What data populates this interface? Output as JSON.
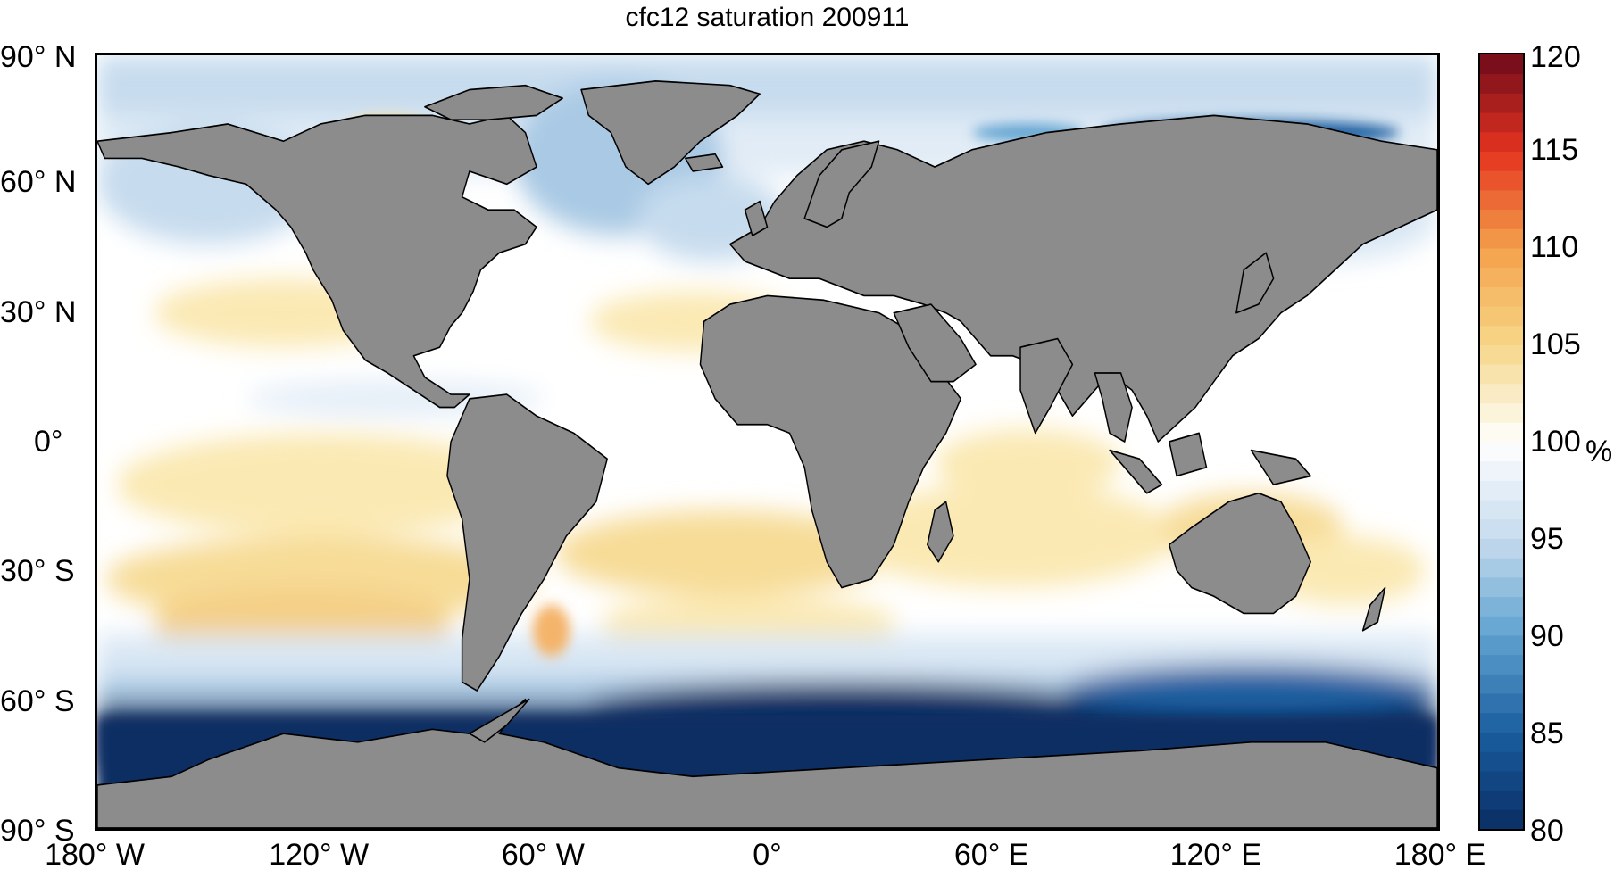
{
  "title": "cfc12 saturation 200911",
  "lat_labels": [
    {
      "text": "90° N",
      "lat": 90
    },
    {
      "text": "60° N",
      "lat": 60
    },
    {
      "text": "30° N",
      "lat": 30
    },
    {
      "text": "0°",
      "lat": 0
    },
    {
      "text": "30° S",
      "lat": -30
    },
    {
      "text": "60° S",
      "lat": -60
    },
    {
      "text": "90° S",
      "lat": -90
    }
  ],
  "lon_labels": [
    {
      "text": "180° W",
      "lon": -180
    },
    {
      "text": "120° W",
      "lon": -120
    },
    {
      "text": "60° W",
      "lon": -60
    },
    {
      "text": "0°",
      "lon": 0
    },
    {
      "text": "60° E",
      "lon": 60
    },
    {
      "text": "120° E",
      "lon": 120
    },
    {
      "text": "180° E",
      "lon": 180
    }
  ],
  "colorbar": {
    "min": 80,
    "max": 120,
    "tick_labels": [
      "80",
      "85",
      "90",
      "95",
      "100",
      "105",
      "110",
      "115",
      "120"
    ],
    "unit": "%",
    "stops": [
      {
        "value": 80,
        "color": "#0a2d64"
      },
      {
        "value": 85,
        "color": "#1a5ea0"
      },
      {
        "value": 90,
        "color": "#5fa2d0"
      },
      {
        "value": 95,
        "color": "#c6dbee"
      },
      {
        "value": 100,
        "color": "#ffffff"
      },
      {
        "value": 105,
        "color": "#f6d788"
      },
      {
        "value": 110,
        "color": "#f4a04a"
      },
      {
        "value": 115,
        "color": "#e4331f"
      },
      {
        "value": 120,
        "color": "#6e0b1b"
      }
    ]
  },
  "colors": {
    "land": "#8c8c8c",
    "coast": "#000000"
  }
}
